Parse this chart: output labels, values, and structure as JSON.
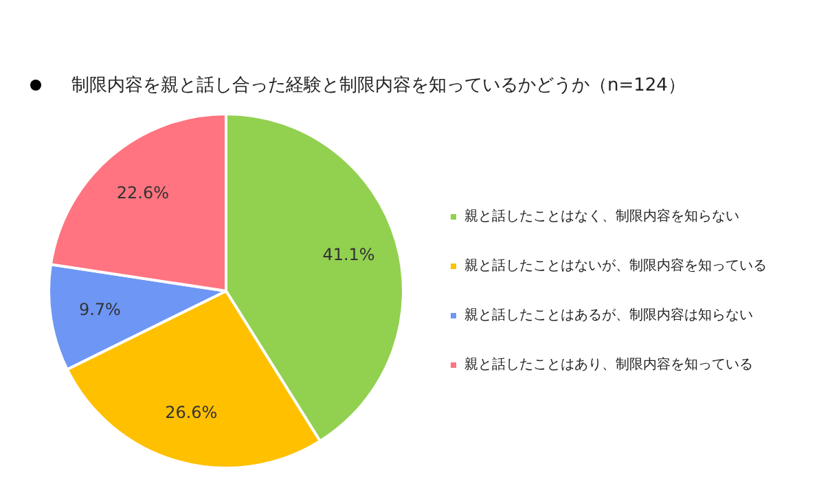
{
  "chart_data": {
    "type": "pie",
    "title": "制限内容を親と話し合った経験と制限内容を知っているかどうか（n=124）",
    "categories": [
      "親と話したことはなく、制限内容を知らない",
      "親と話したことはないが、制限内容を知っている",
      "親と話したことはあるが、制限内容は知らない",
      "親と話したことはあり、制限内容を知っている"
    ],
    "values": [
      41.1,
      26.6,
      9.7,
      22.6
    ],
    "value_labels": [
      "41.1%",
      "26.6%",
      "9.7%",
      "22.6%"
    ],
    "colors": [
      "#92d050",
      "#ffc000",
      "#6d96f5",
      "#ff7480"
    ],
    "legend": "right"
  }
}
